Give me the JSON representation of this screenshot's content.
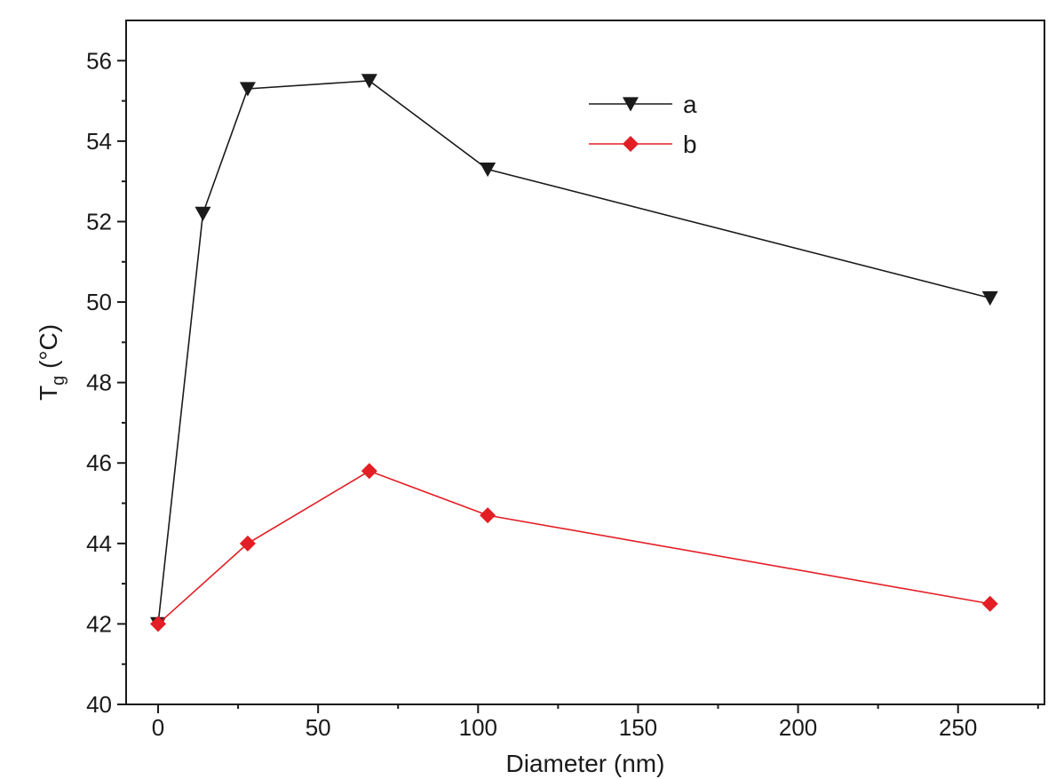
{
  "chart_data": {
    "type": "line",
    "xlabel": "Diameter (nm)",
    "ylabel": {
      "main": "T",
      "sub": "g",
      "unit": " (°C)"
    },
    "xlim": [
      -10,
      277
    ],
    "ylim": [
      40,
      57
    ],
    "xticks": [
      0,
      50,
      100,
      150,
      200,
      250
    ],
    "yticks": [
      40,
      42,
      44,
      46,
      48,
      50,
      52,
      54,
      56
    ],
    "grid": false,
    "legend_position": "top-center",
    "series": [
      {
        "name": "a",
        "color": "#1a1a1a",
        "marker": "down-triangle",
        "x": [
          0,
          14,
          28,
          66,
          103,
          260
        ],
        "y": [
          42.0,
          52.2,
          55.3,
          55.5,
          53.3,
          50.1
        ]
      },
      {
        "name": "b",
        "color": "#e31e24",
        "marker": "diamond",
        "x": [
          0,
          28,
          66,
          103,
          260
        ],
        "y": [
          42.0,
          44.0,
          45.8,
          44.7,
          42.5
        ]
      }
    ]
  }
}
